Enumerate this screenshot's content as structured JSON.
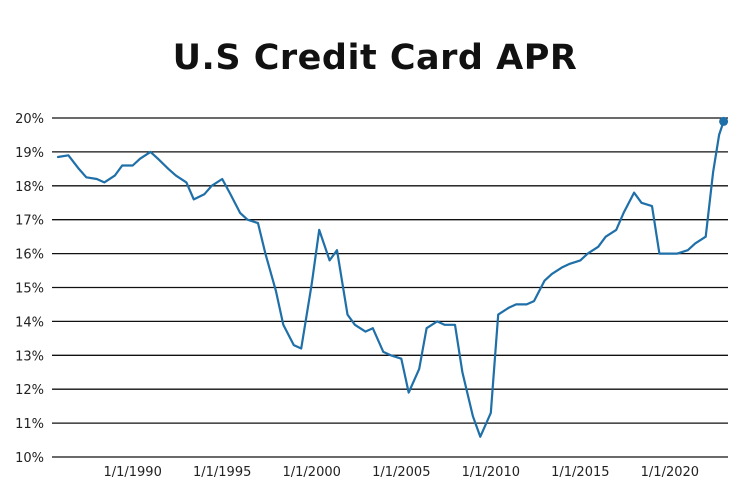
{
  "chart_data": {
    "type": "line",
    "title": "U.S Credit Card APR",
    "xlabel": "",
    "ylabel": "",
    "ylim": [
      10,
      20
    ],
    "xlim": [
      "1985-07-01",
      "2023-04-01"
    ],
    "grid": "horizontal",
    "y_ticks": [
      10,
      11,
      12,
      13,
      14,
      15,
      16,
      17,
      18,
      19,
      20
    ],
    "y_tick_labels": [
      "10%",
      "11%",
      "12%",
      "13%",
      "14%",
      "15%",
      "16%",
      "17%",
      "18%",
      "19%",
      "20%"
    ],
    "x_ticks": [
      "1990-01-01",
      "1995-01-01",
      "2000-01-01",
      "2005-01-01",
      "2010-01-01",
      "2015-01-01",
      "2020-01-01"
    ],
    "x_tick_labels": [
      "1/1/1990",
      "1/1/1995",
      "1/1/2000",
      "1/1/2005",
      "1/1/2010",
      "1/1/2015",
      "1/1/2020"
    ],
    "line_color": "#1f6fa8",
    "highlight_last_point": true,
    "series": [
      {
        "x": [
          "1985-11-01",
          "1986-06-01",
          "1987-01-01",
          "1987-06-01",
          "1988-01-01",
          "1988-06-01",
          "1989-01-01",
          "1989-06-01",
          "1990-01-01",
          "1990-06-01",
          "1991-01-01",
          "1991-06-01",
          "1992-01-01",
          "1992-06-01",
          "1993-01-01",
          "1993-06-01",
          "1994-01-01",
          "1994-06-01",
          "1995-01-01",
          "1995-06-01",
          "1996-01-01",
          "1996-06-01",
          "1997-01-01",
          "1997-06-01",
          "1998-01-01",
          "1998-06-01",
          "1999-01-01",
          "1999-06-01",
          "2000-01-01",
          "2000-06-01",
          "2001-01-01",
          "2001-06-01",
          "2002-01-01",
          "2002-06-01",
          "2003-01-01",
          "2003-06-01",
          "2004-01-01",
          "2004-06-01",
          "2005-01-01",
          "2005-06-01",
          "2006-01-01",
          "2006-06-01",
          "2007-01-01",
          "2007-06-01",
          "2008-01-01",
          "2008-06-01",
          "2009-01-01",
          "2009-06-01",
          "2010-01-01",
          "2010-06-01",
          "2011-01-01",
          "2011-06-01",
          "2012-01-01",
          "2012-06-01",
          "2013-01-01",
          "2013-06-01",
          "2014-01-01",
          "2014-06-01",
          "2015-01-01",
          "2015-06-01",
          "2016-01-01",
          "2016-06-01",
          "2017-01-01",
          "2017-06-01",
          "2018-01-01",
          "2018-06-01",
          "2019-01-01",
          "2019-06-01",
          "2020-01-01",
          "2020-06-01",
          "2021-01-01",
          "2021-06-01",
          "2022-01-01",
          "2022-06-01",
          "2022-10-01",
          "2023-01-01"
        ],
        "values": [
          18.85,
          18.9,
          18.5,
          18.25,
          18.2,
          18.1,
          18.3,
          18.6,
          18.6,
          18.8,
          19.0,
          18.8,
          18.5,
          18.3,
          18.1,
          17.6,
          17.75,
          18.0,
          18.2,
          17.8,
          17.2,
          17.0,
          16.9,
          16.0,
          14.9,
          13.9,
          13.3,
          13.2,
          15.1,
          16.7,
          15.8,
          16.1,
          14.2,
          13.9,
          13.7,
          13.8,
          13.1,
          13.0,
          12.9,
          11.9,
          12.6,
          13.8,
          14.0,
          13.9,
          13.9,
          12.5,
          11.2,
          10.6,
          11.3,
          14.2,
          14.4,
          14.5,
          14.5,
          14.6,
          15.2,
          15.4,
          15.6,
          15.7,
          15.8,
          16.0,
          16.2,
          16.5,
          16.7,
          17.2,
          17.8,
          17.5,
          17.4,
          16.0,
          16.0,
          16.0,
          16.1,
          16.3,
          16.5,
          18.4,
          19.5,
          19.9
        ]
      }
    ]
  }
}
